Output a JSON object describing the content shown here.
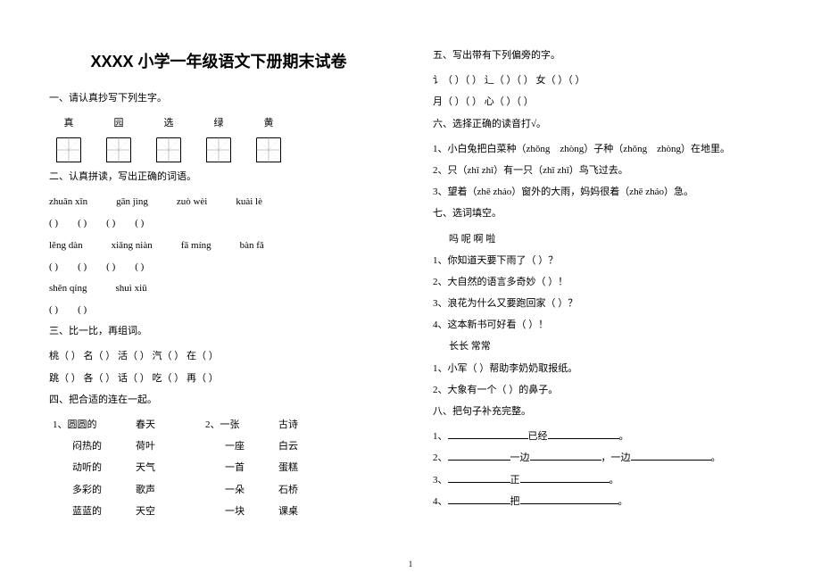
{
  "title": "XXXX 小学一年级语文下册期末试卷",
  "left": {
    "s1": {
      "heading": "一、请认真抄写下列生字。",
      "chars": [
        "真",
        "园",
        "选",
        "绿",
        "黄"
      ]
    },
    "s2": {
      "heading": "二、认真拼读，写出正确的词语。",
      "rows": [
        [
          "zhuān  xīn",
          "gān  jìng",
          "zuò  wèi",
          "kuài  lè"
        ],
        [
          "lěng  dàn",
          "xiǎng  niàn",
          "fā  míng",
          "bàn  fǎ"
        ],
        [
          "shēn  qíng",
          "shuì  xiū"
        ]
      ]
    },
    "s3": {
      "heading": "三、比一比，再组词。",
      "r1": [
        "桃（       ）",
        "名（       ）",
        "活（       ）",
        "汽（       ）",
        "在（       ）"
      ],
      "r2": [
        "跳（       ）",
        "各（       ）",
        "话（       ）",
        "吃（       ）",
        "再（       ）"
      ]
    },
    "s4": {
      "heading": "四、把合适的连在一起。",
      "leftA": [
        "圆圆的",
        "闷热的",
        "动听的",
        "多彩的",
        "蓝蓝的"
      ],
      "leftB": [
        "春天",
        "荷叶",
        "天气",
        "歌声",
        "天空"
      ],
      "leftLabel": "1、",
      "rightLabel": "2、",
      "rightA": [
        "一张",
        "一座",
        "一首",
        "一朵",
        "一块"
      ],
      "rightB": [
        "古诗",
        "白云",
        "蛋糕",
        "石桥",
        "课桌"
      ]
    }
  },
  "right": {
    "s5": {
      "heading": "五、写出带有下列偏旁的字。",
      "r1": "讠（     ）（     ）       辶（     ）（     ）       女（     ）（     ）",
      "r2": "月（     ）（     ）       心（     ）（     ）"
    },
    "s6": {
      "heading": "六、选择正确的读音打√。",
      "items": [
        "1、小白兔把白菜种（zhǒng　zhòng）子种（zhǒng　zhòng）在地里。",
        "2、只（zhī zhǐ）有一只（zhī zhǐ）鸟飞过去。",
        "3、望着（zhē zháo）窗外的大雨，妈妈很着（zhē zháo）急。"
      ]
    },
    "s7": {
      "heading": "七、选词填空。",
      "setA": {
        "options": "吗      呢      啊      啦",
        "items": [
          "1、你知道天要下雨了（       ）？",
          "2、大自然的语言多奇妙（       ）！",
          "3、浪花为什么又要跑回家（       ）？",
          "4、这本新书可好看（       ）！"
        ]
      },
      "setB": {
        "options": "长长    常常",
        "items": [
          "1、小军（       ）帮助李奶奶取报纸。",
          "2、大象有一个（       ）的鼻子。"
        ]
      }
    },
    "s8": {
      "heading": "八、把句子补充完整。",
      "items": [
        {
          "n": "1、",
          "parts": [
            90,
            "已经",
            80,
            "。"
          ]
        },
        {
          "n": "2、",
          "parts": [
            70,
            "一边",
            80,
            "，一边",
            90,
            "。"
          ]
        },
        {
          "n": "3、",
          "parts": [
            70,
            "正",
            100,
            "。"
          ]
        },
        {
          "n": "4、",
          "parts": [
            70,
            "把",
            110,
            "。"
          ]
        }
      ]
    }
  },
  "page": "1"
}
